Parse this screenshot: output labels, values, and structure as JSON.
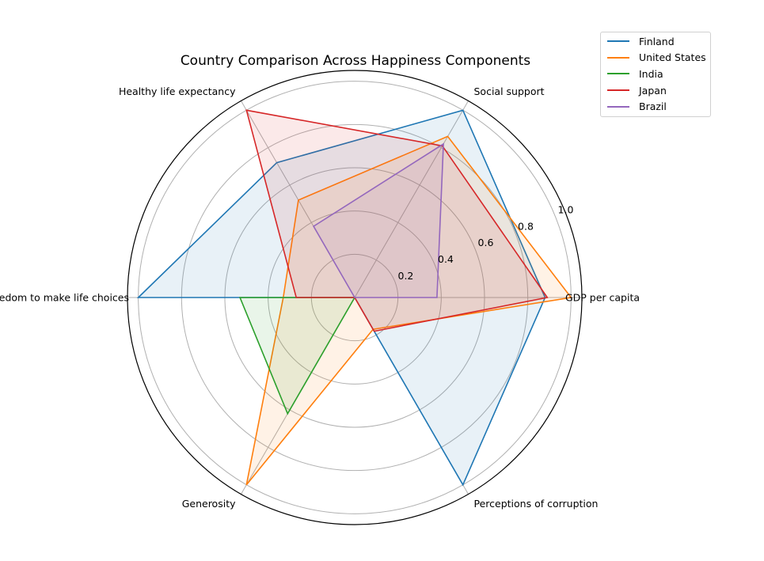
{
  "chart_data": {
    "type": "radar",
    "title": "Country Comparison Across Happiness Components",
    "categories": [
      "GDP per capita",
      "Social support",
      "Healthy life expectancy",
      "Freedom to make life choices",
      "Generosity",
      "Perceptions of corruption"
    ],
    "radial_ticks": [
      0.2,
      0.4,
      0.6,
      0.8,
      1.0
    ],
    "rlim": [
      0,
      1.05
    ],
    "grid": true,
    "legend_position": "upper-right-outside",
    "series": [
      {
        "name": "Finland",
        "color": "#1f77b4",
        "values": [
          0.88,
          1.0,
          0.72,
          1.0,
          0.0,
          1.0
        ]
      },
      {
        "name": "United States",
        "color": "#ff7f0e",
        "values": [
          1.0,
          0.86,
          0.52,
          0.33,
          1.0,
          0.17
        ]
      },
      {
        "name": "India",
        "color": "#2ca02c",
        "values": [
          0.0,
          0.0,
          0.0,
          0.53,
          0.62,
          0.0
        ]
      },
      {
        "name": "Japan",
        "color": "#d62728",
        "values": [
          0.89,
          0.81,
          1.0,
          0.27,
          0.0,
          0.18
        ]
      },
      {
        "name": "Brazil",
        "color": "#9467bd",
        "values": [
          0.38,
          0.82,
          0.38,
          0.0,
          0.0,
          0.0
        ]
      }
    ]
  }
}
